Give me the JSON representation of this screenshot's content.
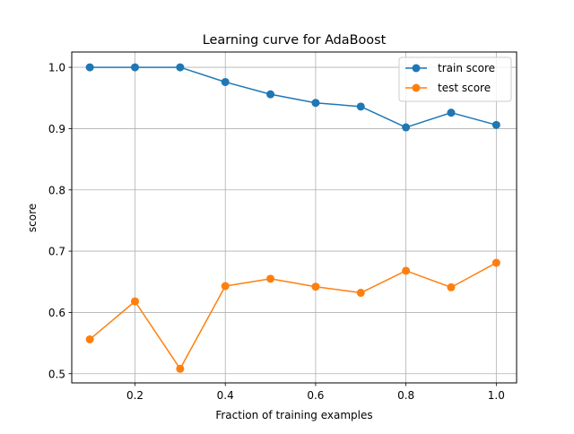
{
  "chart_data": {
    "type": "line",
    "title": "Learning curve for AdaBoost",
    "xlabel": "Fraction of training examples",
    "ylabel": "score",
    "x": [
      0.1,
      0.2,
      0.3,
      0.4,
      0.5,
      0.6,
      0.7,
      0.8,
      0.9,
      1.0
    ],
    "xlim": [
      0.06,
      1.045
    ],
    "ylim": [
      0.485,
      1.025
    ],
    "xticks": [
      0.2,
      0.4,
      0.6,
      0.8,
      1.0
    ],
    "xtick_labels": [
      "0.2",
      "0.4",
      "0.6",
      "0.8",
      "1.0"
    ],
    "yticks": [
      0.5,
      0.6,
      0.7,
      0.8,
      0.9,
      1.0
    ],
    "ytick_labels": [
      "0.5",
      "0.6",
      "0.7",
      "0.8",
      "0.9",
      "1.0"
    ],
    "grid": true,
    "legend_position": "top-right",
    "series": [
      {
        "name": "train score",
        "color": "#1f77b4",
        "marker": "circle",
        "values": [
          1.0,
          1.0,
          1.0,
          0.976,
          0.956,
          0.942,
          0.936,
          0.902,
          0.926,
          0.906
        ]
      },
      {
        "name": "test score",
        "color": "#ff7f0e",
        "marker": "circle",
        "values": [
          0.556,
          0.618,
          0.508,
          0.643,
          0.655,
          0.642,
          0.632,
          0.668,
          0.641,
          0.681
        ]
      }
    ]
  }
}
